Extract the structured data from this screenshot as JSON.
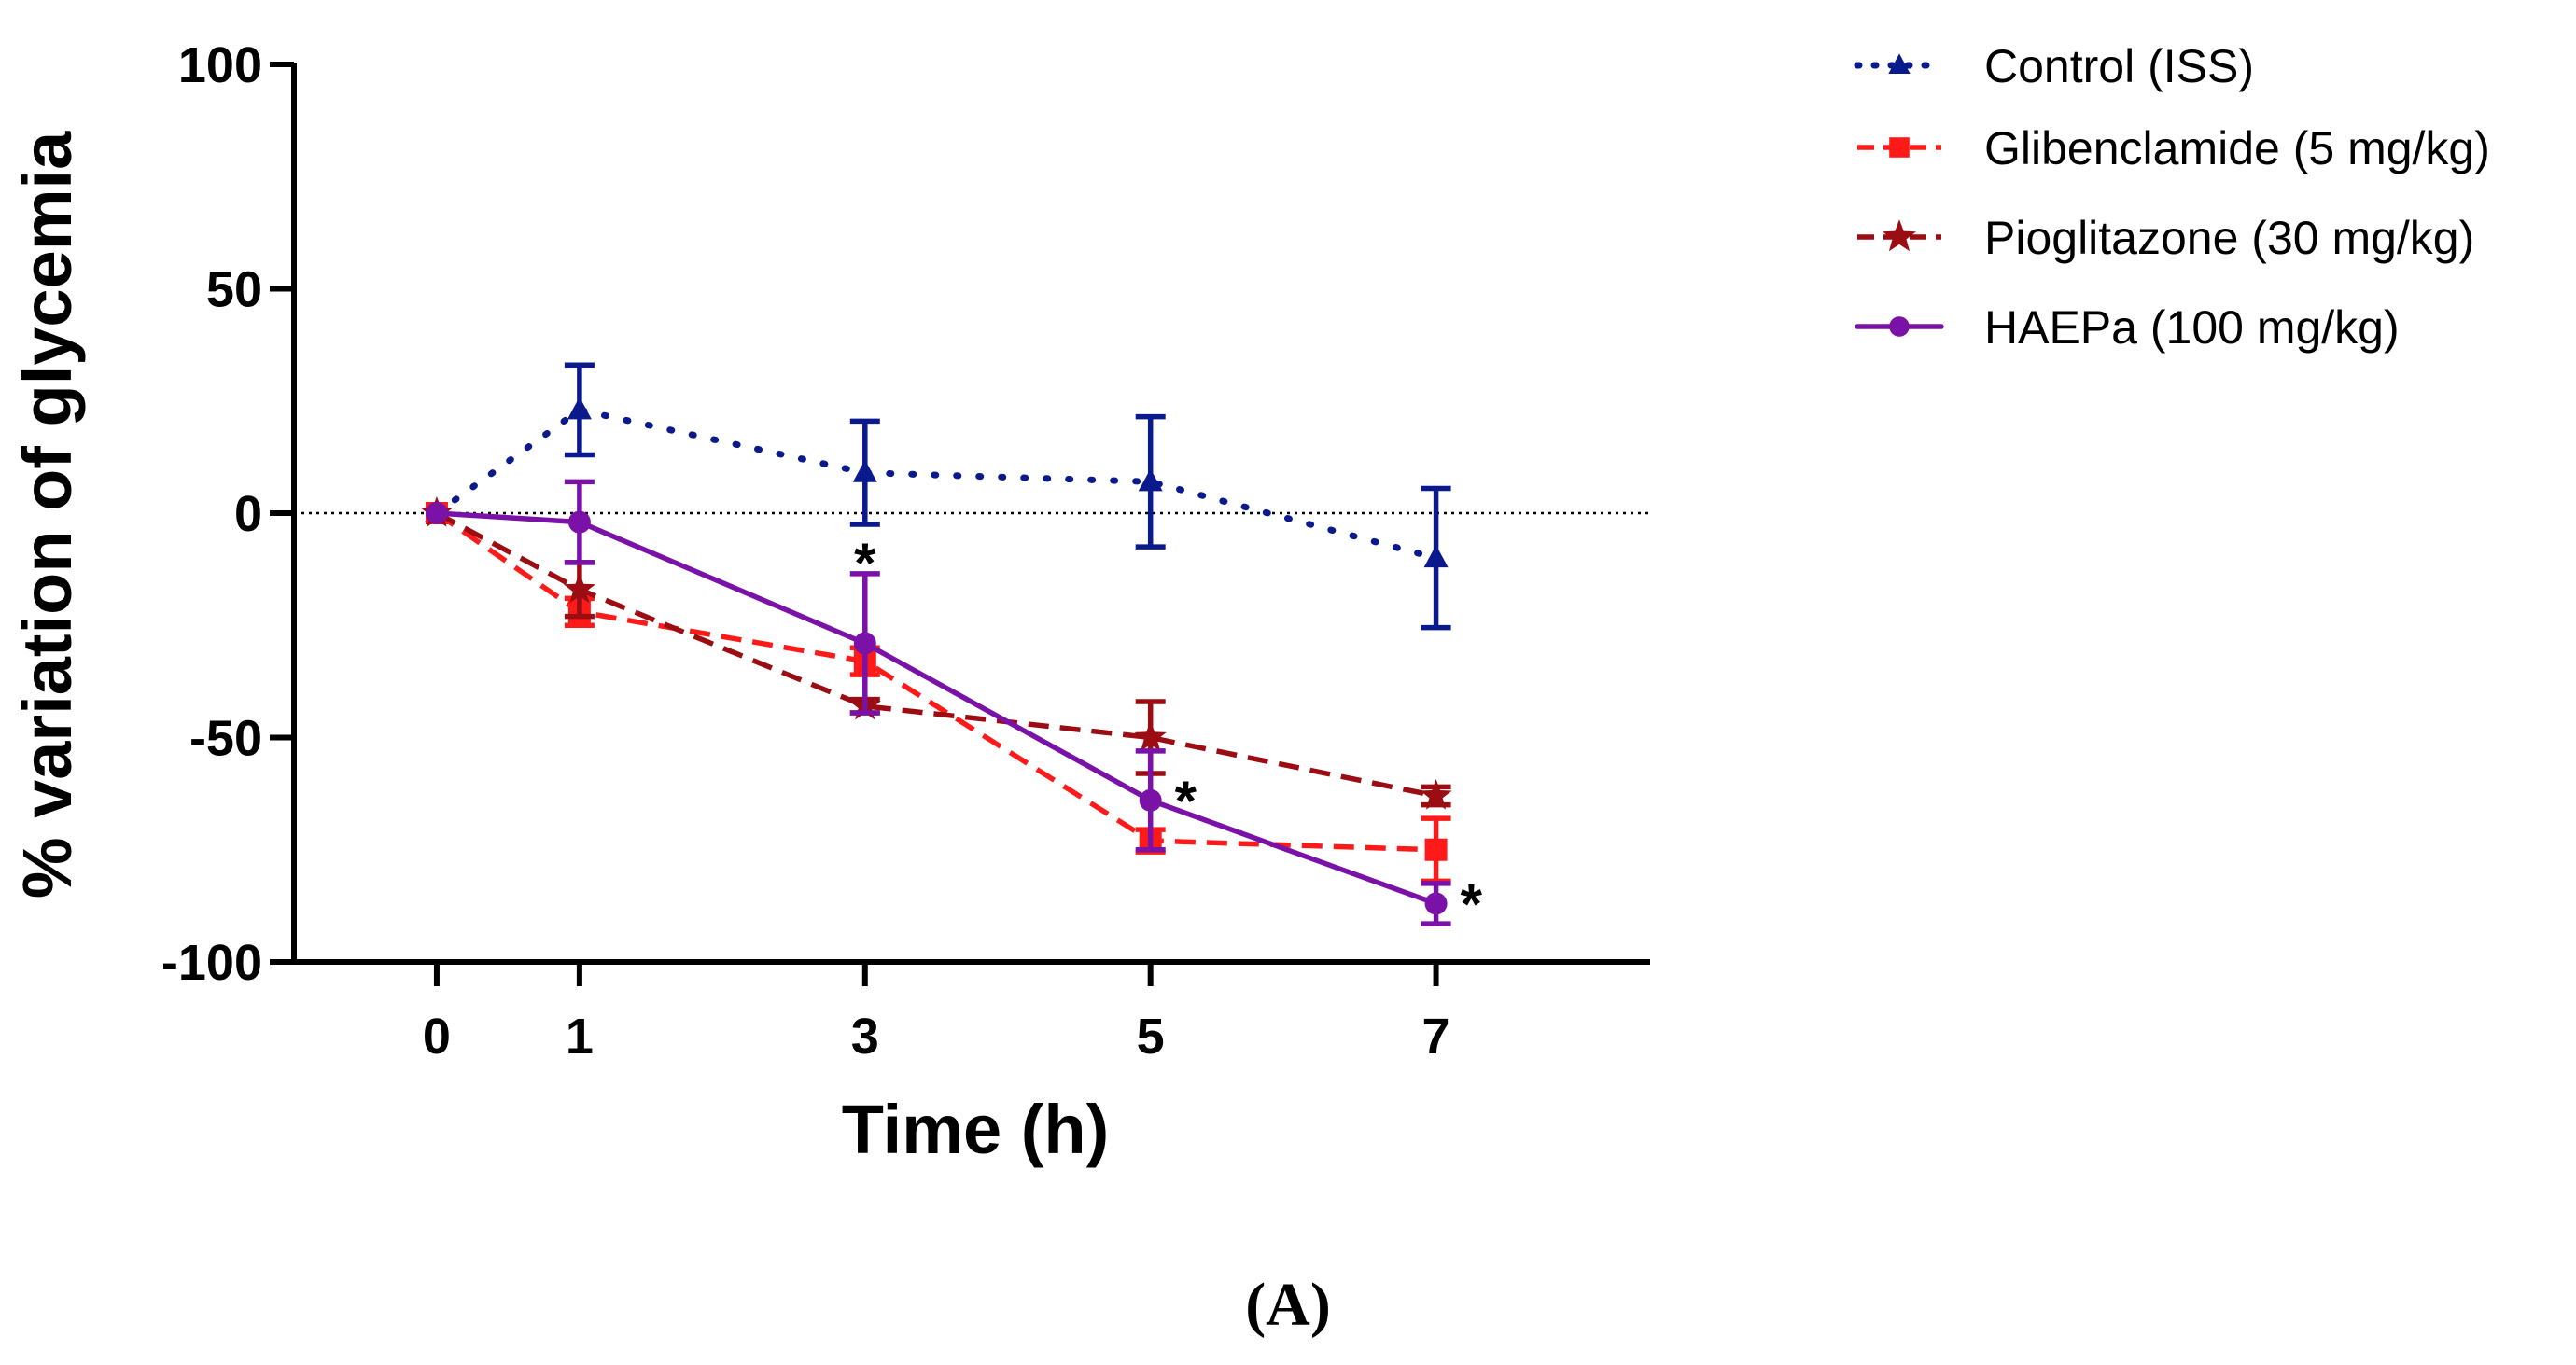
{
  "chart_data": {
    "type": "line",
    "title": "",
    "xlabel": "Time (h)",
    "ylabel": "% variation of glycemia",
    "panel_label": "(A)",
    "x": [
      0,
      1,
      3,
      5,
      7
    ],
    "x_tick_labels": [
      "0",
      "1",
      "3",
      "5",
      "7"
    ],
    "xlim": [
      -1,
      8.5
    ],
    "ylim": [
      -100,
      100
    ],
    "y_ticks": [
      100,
      50,
      0,
      -50,
      -100
    ],
    "y_tick_labels": [
      "100",
      "50",
      "0",
      "-50",
      "-100"
    ],
    "reference_line": 0,
    "legend_position": "top-right outside",
    "series": [
      {
        "name": "Control (ISS)",
        "color": "#0a1a8c",
        "line_style": "dotted",
        "marker": "triangle",
        "values": [
          0,
          23,
          9,
          7,
          -10
        ],
        "errors": [
          0,
          10,
          11.5,
          14.5,
          15.5
        ]
      },
      {
        "name": "Glibenclamide (5 mg/kg)",
        "color": "#ff1a1a",
        "line_style": "dashed",
        "marker": "square",
        "values": [
          0,
          -22,
          -33,
          -73,
          -75
        ],
        "errors": [
          0,
          3,
          3,
          2.5,
          7
        ]
      },
      {
        "name": "Pioglitazone (30 mg/kg)",
        "color": "#9b0d12",
        "line_style": "dashed",
        "marker": "star",
        "values": [
          0,
          -17,
          -43,
          -50,
          -63
        ],
        "errors": [
          0,
          6,
          1.5,
          8,
          2
        ]
      },
      {
        "name": "HAEPa (100 mg/kg)",
        "color": "#7a12a8",
        "line_style": "solid",
        "marker": "circle",
        "values": [
          0,
          -2,
          -29,
          -64,
          -87
        ],
        "errors": [
          0,
          9,
          15.5,
          11,
          4.5
        ]
      }
    ],
    "annotations": [
      {
        "text": "*",
        "x": 3,
        "y": -10
      },
      {
        "text": "*",
        "x": 5,
        "y": -63
      },
      {
        "text": "*",
        "x": 7,
        "y": -86
      }
    ]
  }
}
